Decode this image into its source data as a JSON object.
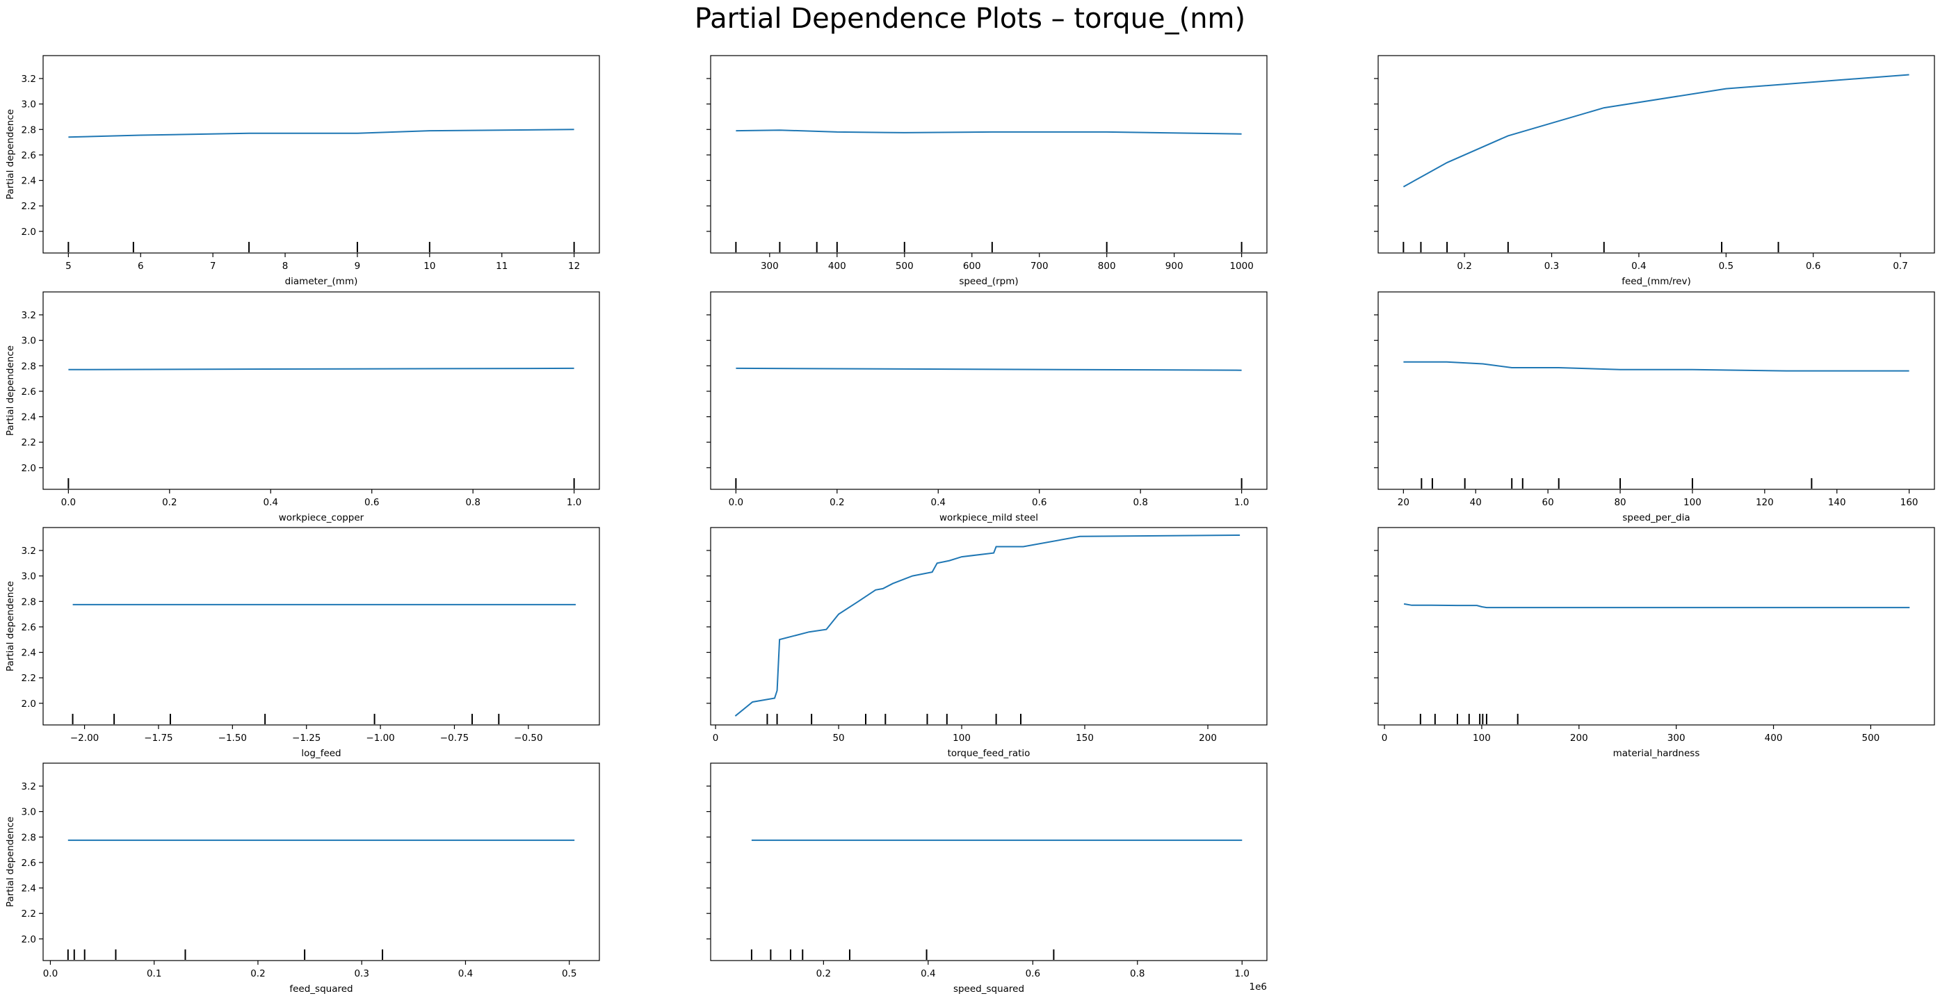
{
  "figure": {
    "suptitle": "Partial Dependence Plots – torque_(nm)",
    "line_color": "#1f77b4",
    "shared_ylim": [
      1.83,
      3.38
    ],
    "shared_yticks": [
      2.0,
      2.2,
      2.4,
      2.6,
      2.8,
      3.0,
      3.2
    ],
    "ylabel": "Partial dependence"
  },
  "chart_data": [
    {
      "type": "line",
      "xlabel": "diameter_(mm)",
      "ylabel": "Partial dependence",
      "xlim": [
        4.65,
        12.35
      ],
      "ylim": [
        1.83,
        3.38
      ],
      "xticks": [
        5,
        6,
        7,
        8,
        9,
        10,
        11,
        12
      ],
      "xtick_labels": [
        "5",
        "6",
        "7",
        "8",
        "9",
        "10",
        "11",
        "12"
      ],
      "x": [
        5,
        6,
        7.5,
        9,
        10,
        12
      ],
      "y": [
        2.74,
        2.755,
        2.77,
        2.77,
        2.79,
        2.8
      ],
      "rug": [
        5,
        5.9,
        7.5,
        9,
        10,
        12
      ]
    },
    {
      "type": "line",
      "xlabel": "speed_(rpm)",
      "ylabel": "",
      "xlim": [
        212.5,
        1037.5
      ],
      "ylim": [
        1.83,
        3.38
      ],
      "xticks": [
        300,
        400,
        500,
        600,
        700,
        800,
        900,
        1000
      ],
      "xtick_labels": [
        "300",
        "400",
        "500",
        "600",
        "700",
        "800",
        "900",
        "1000"
      ],
      "x": [
        250,
        315,
        400,
        500,
        630,
        800,
        1000
      ],
      "y": [
        2.79,
        2.795,
        2.78,
        2.775,
        2.78,
        2.78,
        2.765
      ],
      "rug": [
        250,
        315,
        370,
        400,
        500,
        630,
        800,
        1000
      ]
    },
    {
      "type": "line",
      "xlabel": "feed_(mm/rev)",
      "ylabel": "",
      "xlim": [
        0.101,
        0.739
      ],
      "ylim": [
        1.83,
        3.38
      ],
      "xticks": [
        0.2,
        0.3,
        0.4,
        0.5,
        0.6,
        0.7
      ],
      "xtick_labels": [
        "0.2",
        "0.3",
        "0.4",
        "0.5",
        "0.6",
        "0.7"
      ],
      "x": [
        0.13,
        0.18,
        0.25,
        0.36,
        0.5,
        0.71
      ],
      "y": [
        2.35,
        2.54,
        2.75,
        2.97,
        3.12,
        3.23
      ],
      "rug": [
        0.13,
        0.15,
        0.18,
        0.25,
        0.36,
        0.495,
        0.56
      ]
    },
    {
      "type": "line",
      "xlabel": "workpiece_copper",
      "ylabel": "Partial dependence",
      "xlim": [
        -0.05,
        1.05
      ],
      "ylim": [
        1.83,
        3.38
      ],
      "xticks": [
        0.0,
        0.2,
        0.4,
        0.6,
        0.8,
        1.0
      ],
      "xtick_labels": [
        "0.0",
        "0.2",
        "0.4",
        "0.6",
        "0.8",
        "1.0"
      ],
      "x": [
        0,
        1
      ],
      "y": [
        2.77,
        2.78
      ],
      "rug": [
        0,
        1
      ]
    },
    {
      "type": "line",
      "xlabel": "workpiece_mild steel",
      "ylabel": "",
      "xlim": [
        -0.05,
        1.05
      ],
      "ylim": [
        1.83,
        3.38
      ],
      "xticks": [
        0.0,
        0.2,
        0.4,
        0.6,
        0.8,
        1.0
      ],
      "xtick_labels": [
        "0.0",
        "0.2",
        "0.4",
        "0.6",
        "0.8",
        "1.0"
      ],
      "x": [
        0,
        1
      ],
      "y": [
        2.78,
        2.765
      ],
      "rug": [
        0,
        1
      ]
    },
    {
      "type": "line",
      "xlabel": "speed_per_dia",
      "ylabel": "",
      "xlim": [
        13.0,
        167.0
      ],
      "ylim": [
        1.83,
        3.38
      ],
      "xticks": [
        20,
        40,
        60,
        80,
        100,
        120,
        140,
        160
      ],
      "xtick_labels": [
        "20",
        "40",
        "60",
        "80",
        "100",
        "120",
        "140",
        "160"
      ],
      "x": [
        20,
        32,
        42,
        50,
        63,
        80,
        100,
        126,
        160
      ],
      "y": [
        2.83,
        2.83,
        2.815,
        2.785,
        2.785,
        2.77,
        2.77,
        2.76,
        2.76
      ],
      "rug": [
        25,
        28,
        37,
        50,
        53,
        63,
        80,
        100,
        133
      ]
    },
    {
      "type": "line",
      "xlabel": "log_feed",
      "ylabel": "Partial dependence",
      "xlim": [
        -2.14,
        -0.26
      ],
      "ylim": [
        1.83,
        3.38
      ],
      "xticks": [
        -2.0,
        -1.75,
        -1.5,
        -1.25,
        -1.0,
        -0.75,
        -0.5
      ],
      "xtick_labels": [
        "−2.00",
        "−1.75",
        "−1.50",
        "−1.25",
        "−1.00",
        "−0.75",
        "−0.50"
      ],
      "x": [
        -2.04,
        -0.34
      ],
      "y": [
        2.775,
        2.775
      ],
      "rug": [
        -2.04,
        -1.9,
        -1.71,
        -1.39,
        -1.02,
        -0.69,
        -0.6
      ]
    },
    {
      "type": "line",
      "xlabel": "torque_feed_ratio",
      "ylabel": "",
      "xlim": [
        -2.0,
        224.0
      ],
      "ylim": [
        1.83,
        3.38
      ],
      "xticks": [
        0,
        50,
        100,
        150,
        200
      ],
      "xtick_labels": [
        "0",
        "50",
        "100",
        "150",
        "200"
      ],
      "x": [
        8,
        15,
        24,
        25,
        26,
        38,
        45,
        50,
        58,
        65,
        68,
        72,
        80,
        88,
        90,
        95,
        100,
        113,
        114,
        125,
        148,
        213
      ],
      "y": [
        1.9,
        2.01,
        2.04,
        2.1,
        2.5,
        2.56,
        2.58,
        2.7,
        2.8,
        2.89,
        2.9,
        2.94,
        3.0,
        3.03,
        3.1,
        3.12,
        3.15,
        3.18,
        3.23,
        3.23,
        3.31,
        3.32
      ],
      "rug": [
        21,
        25,
        39,
        61,
        69,
        86,
        94,
        114,
        124
      ]
    },
    {
      "type": "line",
      "xlabel": "material_hardness",
      "ylabel": "",
      "xlim": [
        -6.5,
        565.5
      ],
      "ylim": [
        1.83,
        3.38
      ],
      "xticks": [
        0,
        100,
        200,
        300,
        400,
        500
      ],
      "xtick_labels": [
        "0",
        "100",
        "200",
        "300",
        "400",
        "500"
      ],
      "x": [
        20,
        28,
        48,
        75,
        95,
        100,
        105,
        540
      ],
      "y": [
        2.78,
        2.77,
        2.77,
        2.768,
        2.768,
        2.758,
        2.752,
        2.752
      ],
      "rug": [
        37,
        52,
        75,
        87,
        98,
        101,
        105,
        137
      ]
    },
    {
      "type": "line",
      "xlabel": "feed_squared",
      "ylabel": "Partial dependence",
      "xlim": [
        -0.007,
        0.529
      ],
      "ylim": [
        1.83,
        3.38
      ],
      "xticks": [
        0.0,
        0.1,
        0.2,
        0.3,
        0.4,
        0.5
      ],
      "xtick_labels": [
        "0.0",
        "0.1",
        "0.2",
        "0.3",
        "0.4",
        "0.5"
      ],
      "x": [
        0.017,
        0.505
      ],
      "y": [
        2.775,
        2.775
      ],
      "rug": [
        0.017,
        0.023,
        0.033,
        0.063,
        0.13,
        0.245,
        0.32
      ]
    },
    {
      "type": "line",
      "xlabel": "speed_squared",
      "ylabel": "",
      "offset_label": "1e6",
      "xlim": [
        -0.0158,
        1.0475
      ],
      "ylim": [
        1.83,
        3.38
      ],
      "xticks": [
        0.2,
        0.4,
        0.6,
        0.8,
        1.0
      ],
      "xtick_labels": [
        "0.2",
        "0.4",
        "0.6",
        "0.8",
        "1.0"
      ],
      "x": [
        0.0625,
        1.0
      ],
      "y": [
        2.775,
        2.775
      ],
      "rug": [
        0.0625,
        0.099,
        0.137,
        0.16,
        0.25,
        0.397,
        0.64
      ]
    }
  ]
}
